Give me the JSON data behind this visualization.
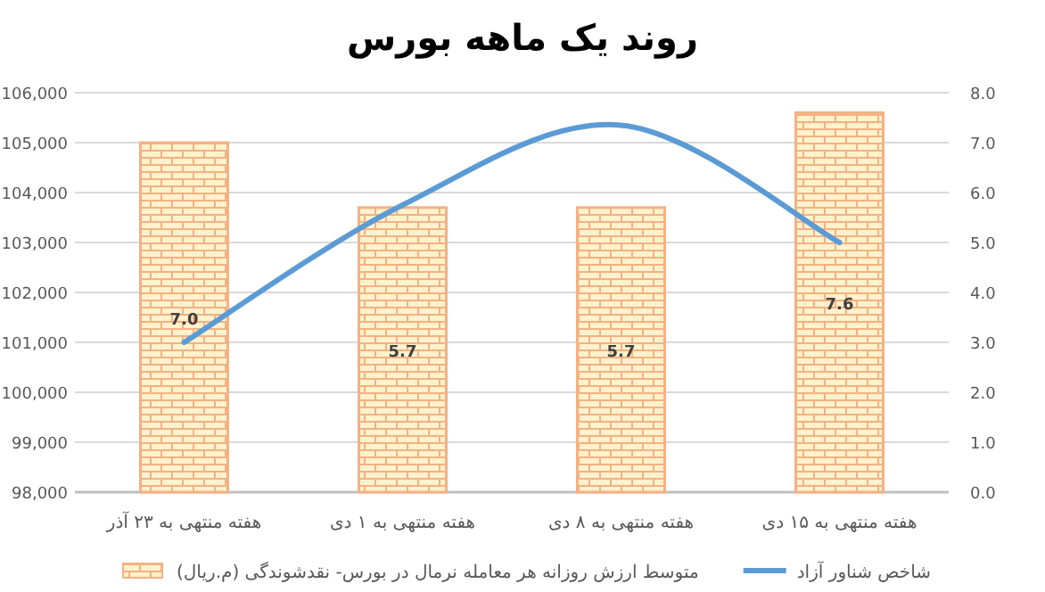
{
  "chart_data": {
    "type": "bar",
    "title": "روند یک ماهه بورس",
    "categories": [
      "هفته منتهی به ۲۳ آذر",
      "هفته منتهی به ۱ دی",
      "هفته منتهی به ۸ دی",
      "هفته منتهی به ۱۵ دی"
    ],
    "series": [
      {
        "name": "شاخص شناور آزاد",
        "type": "line",
        "color": "#5b9bd5",
        "values": [
          101000,
          103750,
          105350,
          103000
        ]
      },
      {
        "name": "متوسط ارزش روزانه هر معامله نرمال در بورس- نقدشوندگی (م.ریال)",
        "axis": "y2",
        "color": "#f4b183",
        "values": [
          7.0,
          5.7,
          5.7,
          7.6
        ],
        "value_labels": [
          "7.0",
          "5.7",
          "5.7",
          "7.6"
        ]
      }
    ],
    "ylim": [
      98000,
      106000
    ],
    "yticks": [
      {
        "value": 98000,
        "label": "98,000"
      },
      {
        "value": 99000,
        "label": "99,000"
      },
      {
        "value": 100000,
        "label": "100,000"
      },
      {
        "value": 101000,
        "label": "101,000"
      },
      {
        "value": 102000,
        "label": "102,000"
      },
      {
        "value": 103000,
        "label": "103,000"
      },
      {
        "value": 104000,
        "label": "104,000"
      },
      {
        "value": 105000,
        "label": "105,000"
      },
      {
        "value": 106000,
        "label": "106,000"
      }
    ],
    "y2lim": [
      0,
      8
    ],
    "y2ticks": [
      {
        "value": 0,
        "label": "0.0"
      },
      {
        "value": 1,
        "label": "1.0"
      },
      {
        "value": 2,
        "label": "2.0"
      },
      {
        "value": 3,
        "label": "3.0"
      },
      {
        "value": 4,
        "label": "4.0"
      },
      {
        "value": 5,
        "label": "5.0"
      },
      {
        "value": 6,
        "label": "6.0"
      },
      {
        "value": 7,
        "label": "7.0"
      },
      {
        "value": 8,
        "label": "8.0"
      }
    ],
    "grid": "y",
    "legend": "bottom"
  }
}
